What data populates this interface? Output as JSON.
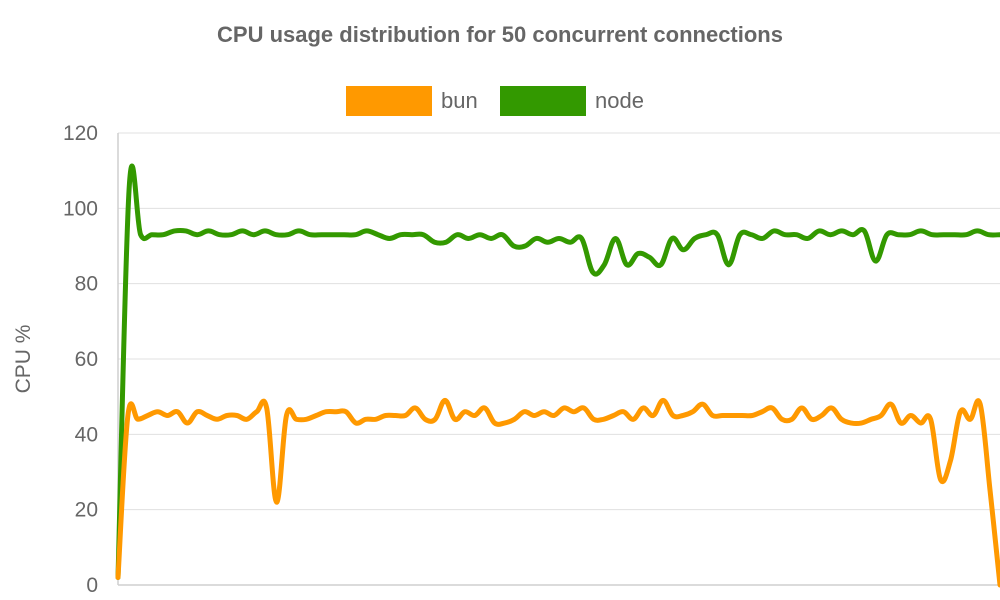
{
  "chart_data": {
    "type": "line",
    "title": "CPU usage distribution for 50 concurrent connections",
    "xlabel": "",
    "ylabel": "CPU %",
    "ylim": [
      0,
      120
    ],
    "yticks": [
      "0",
      "20",
      "40",
      "60",
      "80",
      "100",
      "120"
    ],
    "grid": true,
    "legend_position": "top-center",
    "series": [
      {
        "name": "bun",
        "color": "#ff9900",
        "values": [
          2,
          45,
          44,
          45,
          46,
          45,
          46,
          43,
          46,
          45,
          44,
          45,
          45,
          44,
          46,
          47,
          22,
          45,
          44,
          44,
          45,
          46,
          46,
          46,
          43,
          44,
          44,
          45,
          45,
          45,
          47,
          44,
          44,
          49,
          44,
          46,
          45,
          47,
          43,
          43,
          44,
          46,
          45,
          46,
          45,
          47,
          46,
          47,
          44,
          44,
          45,
          46,
          44,
          47,
          45,
          49,
          45,
          45,
          46,
          48,
          45,
          45,
          45,
          45,
          45,
          46,
          47,
          44,
          44,
          47,
          44,
          45,
          47,
          44,
          43,
          43,
          44,
          45,
          48,
          43,
          45,
          43,
          44,
          28,
          33,
          46,
          44,
          48,
          25,
          0
        ]
      },
      {
        "name": "node",
        "color": "#339900",
        "values": [
          2,
          106,
          93,
          93,
          93,
          94,
          94,
          93,
          94,
          93,
          93,
          94,
          93,
          94,
          93,
          93,
          94,
          93,
          93,
          93,
          93,
          93,
          94,
          93,
          92,
          93,
          93,
          93,
          91,
          91,
          93,
          92,
          93,
          92,
          93,
          90,
          90,
          92,
          91,
          92,
          91,
          92,
          83,
          85,
          92,
          85,
          88,
          87,
          85,
          92,
          89,
          92,
          93,
          93,
          85,
          93,
          93,
          92,
          94,
          93,
          93,
          92,
          94,
          93,
          94,
          93,
          94,
          86,
          93,
          93,
          93,
          94,
          93,
          93,
          93,
          93,
          94,
          93,
          93
        ]
      }
    ]
  }
}
